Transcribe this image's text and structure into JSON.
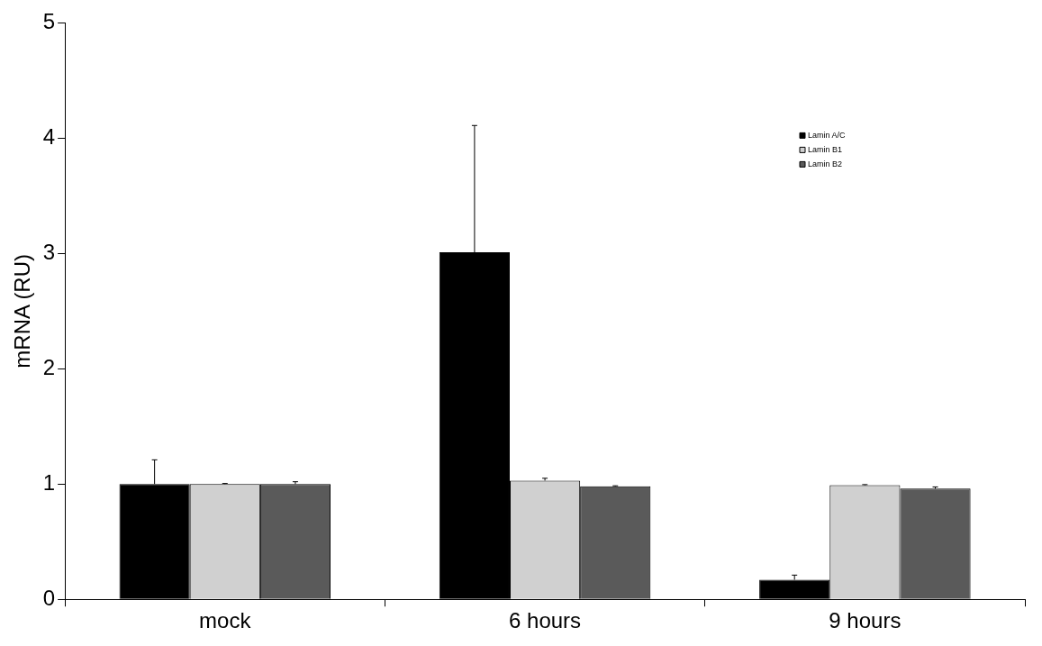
{
  "chart_data": {
    "type": "bar",
    "ylabel": "mRNA (RU)",
    "categories": [
      "mock",
      "6 hours",
      "9 hours"
    ],
    "series": [
      {
        "name": "Lamin A/C",
        "color": "#000000",
        "values": [
          1.0,
          3.01,
          0.17
        ],
        "errors": [
          [
            1.0,
            1.21
          ],
          [
            3.01,
            4.11
          ],
          [
            0.17,
            0.21
          ]
        ]
      },
      {
        "name": "Lamin B1",
        "color": "#d0d0d0",
        "values": [
          1.0,
          1.03,
          0.99
        ],
        "errors": [
          [
            1.0,
            1.005
          ],
          [
            1.03,
            1.05
          ],
          [
            0.99,
            0.995
          ]
        ]
      },
      {
        "name": "Lamin B2",
        "color": "#5a5a5a",
        "values": [
          1.0,
          0.98,
          0.96
        ],
        "errors": [
          [
            1.0,
            1.02
          ],
          [
            0.98,
            0.985
          ],
          [
            0.96,
            0.975
          ]
        ]
      }
    ],
    "ylim": [
      0,
      5
    ],
    "yticks": [
      0,
      1,
      2,
      3,
      4,
      5
    ],
    "grid": false,
    "legend": "top right"
  }
}
